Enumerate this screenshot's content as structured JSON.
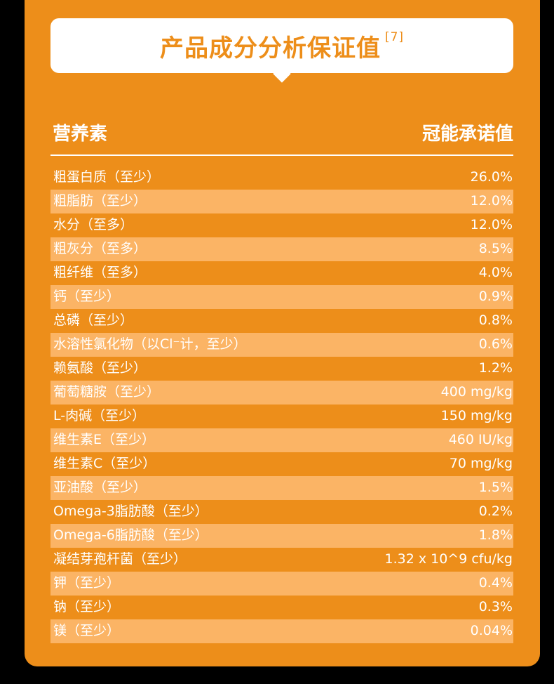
{
  "title": "产品成分分析保证值",
  "title_ref": "[7]",
  "header": {
    "left": "营养素",
    "right": "冠能承诺值"
  },
  "colors": {
    "background": "#000000",
    "card": "#ED8E1A",
    "stripe": "#FBB465",
    "text": "#FFFFFF"
  },
  "rows": [
    {
      "name": "粗蛋白质（至少）",
      "value": "26.0%"
    },
    {
      "name": "粗脂肪（至少）",
      "value": "12.0%"
    },
    {
      "name": "水分（至多）",
      "value": "12.0%"
    },
    {
      "name": "粗灰分（至多）",
      "value": "8.5%"
    },
    {
      "name": "粗纤维（至多）",
      "value": "4.0%"
    },
    {
      "name": "钙（至少）",
      "value": "0.9%"
    },
    {
      "name": "总磷（至少）",
      "value": "0.8%"
    },
    {
      "name": "水溶性氯化物（以Cl⁻计，至少）",
      "value": "0.6%"
    },
    {
      "name": "赖氨酸（至少）",
      "value": "1.2%"
    },
    {
      "name": "葡萄糖胺（至少）",
      "value": "400 mg/kg"
    },
    {
      "name": "L-肉碱（至少）",
      "value": "150 mg/kg"
    },
    {
      "name": "维生素E（至少）",
      "value": "460 IU/kg"
    },
    {
      "name": "维生素C（至少）",
      "value": "70 mg/kg"
    },
    {
      "name": "亚油酸（至少）",
      "value": "1.5%"
    },
    {
      "name": "Omega-3脂肪酸（至少）",
      "value": "0.2%"
    },
    {
      "name": "Omega-6脂肪酸（至少）",
      "value": "1.8%"
    },
    {
      "name": "凝结芽孢杆菌（至少）",
      "value": "1.32 x 10^9 cfu/kg"
    },
    {
      "name": "钾（至少）",
      "value": "0.4%"
    },
    {
      "name": "钠（至少）",
      "value": "0.3%"
    },
    {
      "name": "镁（至少）",
      "value": "0.04%"
    }
  ]
}
